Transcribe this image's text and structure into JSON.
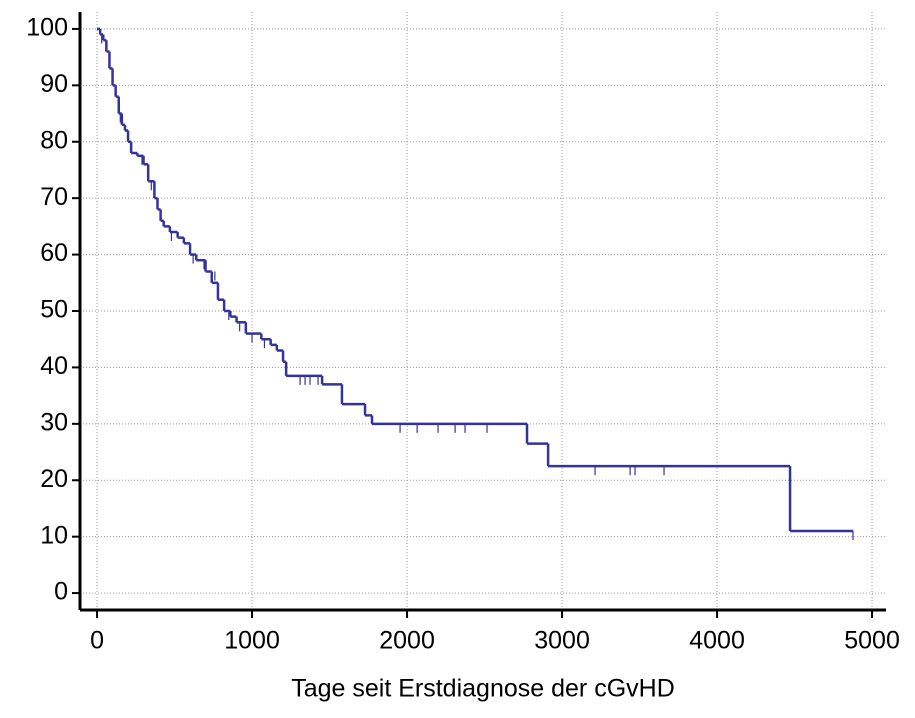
{
  "chart_data": {
    "type": "step",
    "x_label": "Tage seit Erstdiagnose der cGvHD",
    "color": "#333399",
    "xlim": [
      -110,
      5090
    ],
    "ylim": [
      -3,
      103
    ],
    "xticks": [
      0,
      1000,
      2000,
      3000,
      4000,
      5000
    ],
    "yticks": [
      0,
      10,
      20,
      30,
      40,
      50,
      60,
      70,
      80,
      90,
      100
    ],
    "grid": true,
    "x": [
      0,
      20,
      40,
      60,
      80,
      100,
      120,
      140,
      160,
      180,
      200,
      220,
      260,
      300,
      330,
      370,
      390,
      410,
      430,
      470,
      520,
      560,
      600,
      640,
      700,
      740,
      780,
      820,
      860,
      900,
      960,
      1060,
      1120,
      1160,
      1200,
      1220,
      1452,
      1580,
      1729,
      1774,
      2774,
      2910,
      4471,
      4877
    ],
    "values": [
      100,
      99,
      98,
      96,
      93,
      90,
      88,
      85,
      83,
      82,
      80,
      78,
      77.5,
      76,
      73,
      70,
      68,
      66,
      65,
      64,
      63,
      62,
      60,
      59,
      57,
      55,
      52,
      50,
      49,
      48,
      46,
      45,
      44,
      43,
      41,
      38.5,
      37,
      33.5,
      31.5,
      30,
      26.5,
      22.5,
      11,
      11
    ],
    "censored": {
      "x": [
        30,
        150,
        290,
        350,
        480,
        620,
        690,
        760,
        850,
        920,
        1000,
        1080,
        1310,
        1342,
        1374,
        1426,
        1955,
        2065,
        2200,
        2310,
        2374,
        2516,
        3213,
        3439,
        3471,
        3658,
        4877
      ],
      "values": [
        99,
        85,
        77.5,
        73,
        64,
        60,
        59,
        57,
        50,
        48,
        46,
        45,
        38.5,
        38.5,
        38.5,
        38.5,
        30,
        30,
        30,
        30,
        30,
        30,
        22.5,
        22.5,
        22.5,
        22.5,
        11
      ]
    }
  }
}
